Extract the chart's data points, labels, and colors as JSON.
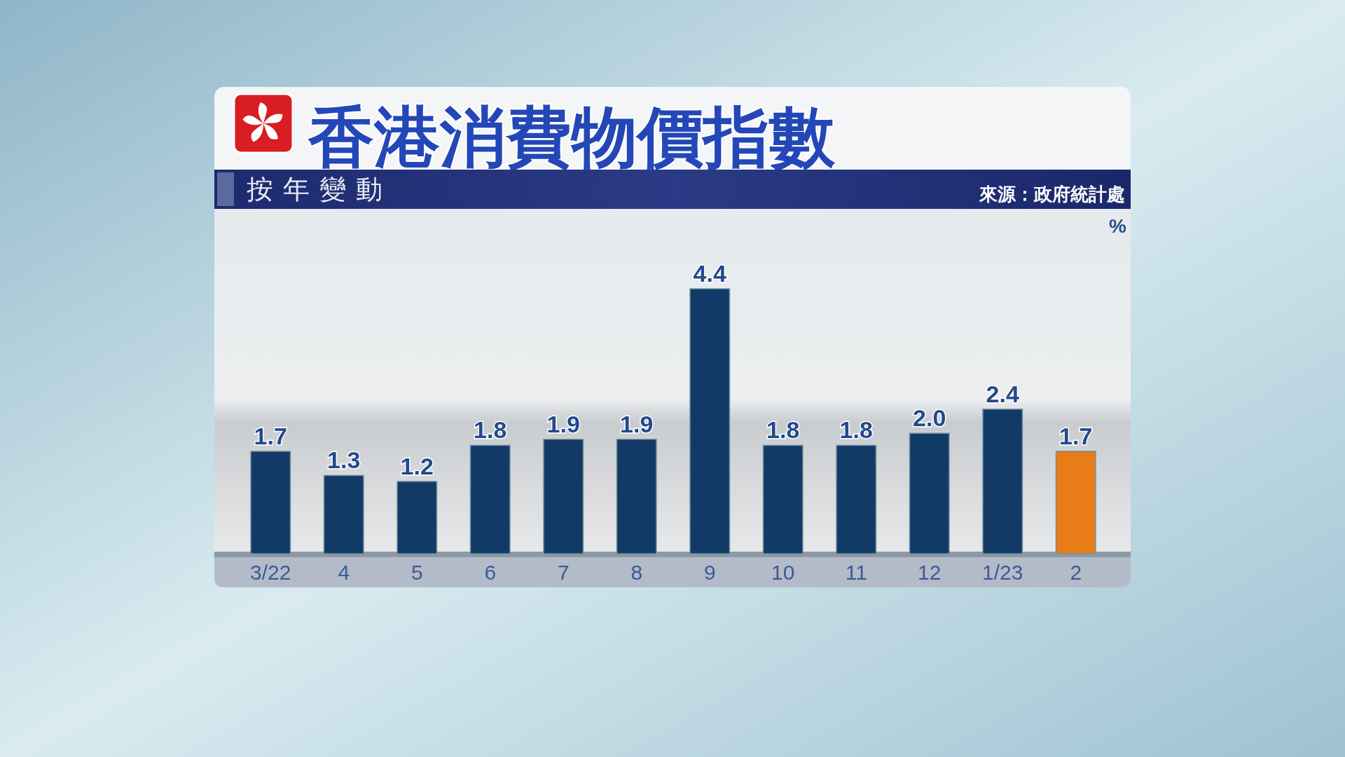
{
  "chart_data": {
    "type": "bar",
    "title": "香港消費物價指數",
    "subtitle": "按年變動",
    "ylabel": "%",
    "annotations": [
      "來源：政府統計處"
    ],
    "categories": [
      "3/22",
      "4",
      "5",
      "6",
      "7",
      "8",
      "9",
      "10",
      "11",
      "12",
      "1/23",
      "2"
    ],
    "values": [
      1.7,
      1.3,
      1.2,
      1.8,
      1.9,
      1.9,
      4.4,
      1.8,
      1.8,
      2.0,
      2.4,
      1.7
    ],
    "value_labels": [
      "1.7",
      "1.3",
      "1.2",
      "1.8",
      "1.9",
      "1.9",
      "4.4",
      "1.8",
      "1.8",
      "2.0",
      "2.4",
      "1.7"
    ],
    "colors": [
      "#123a66",
      "#123a66",
      "#123a66",
      "#123a66",
      "#123a66",
      "#123a66",
      "#123a66",
      "#123a66",
      "#123a66",
      "#123a66",
      "#123a66",
      "#e87c17"
    ]
  }
}
